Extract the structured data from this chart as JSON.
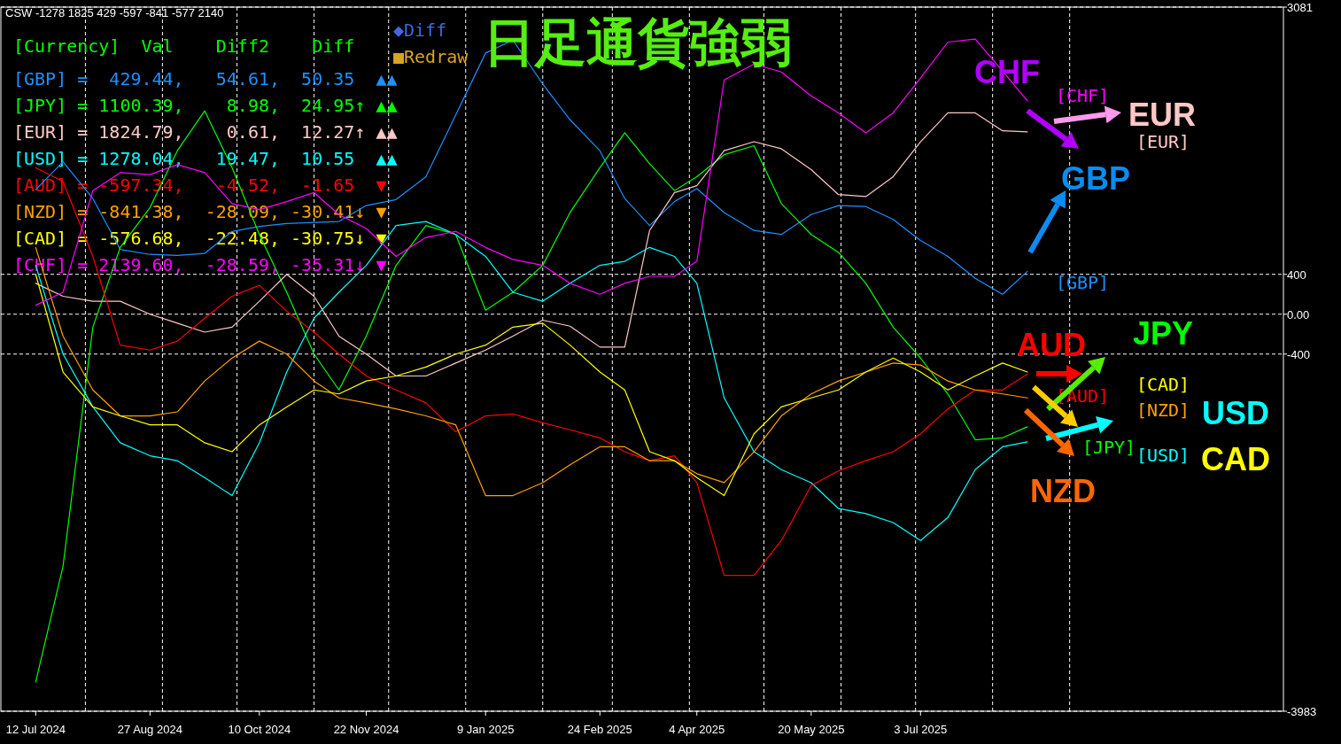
{
  "chart_data": {
    "type": "line",
    "title": "日足通貨強弱",
    "x": [
      "2024-07-12",
      "2024-07-23",
      "2024-08-04",
      "2024-08-15",
      "2024-08-27",
      "2024-09-07",
      "2024-09-18",
      "2024-09-29",
      "2024-10-10",
      "2024-10-21",
      "2024-11-01",
      "2024-11-11",
      "2024-11-22",
      "2024-12-04",
      "2024-12-16",
      "2024-12-28",
      "2025-01-09",
      "2025-01-20",
      "2025-02-01",
      "2025-02-12",
      "2025-02-24",
      "2025-03-06",
      "2025-03-16",
      "2025-03-26",
      "2025-04-04",
      "2025-04-15",
      "2025-04-27",
      "2025-05-08",
      "2025-05-20",
      "2025-05-31",
      "2025-06-11",
      "2025-06-22",
      "2025-07-03",
      "2025-07-14",
      "2025-07-25",
      "2025-08-05",
      "2025-08-15"
    ],
    "xlim": [
      "2024-06-28",
      "2025-11-26"
    ],
    "xticks": [
      {
        "value": "2024-07-12",
        "label": "12 Jul 2024"
      },
      {
        "value": "2024-08-27",
        "label": "27 Aug 2024"
      },
      {
        "value": "2024-10-10",
        "label": "10 Oct 2024"
      },
      {
        "value": "2024-11-22",
        "label": "22 Nov 2024"
      },
      {
        "value": "2025-01-09",
        "label": "9 Jan 2025"
      },
      {
        "value": "2025-02-24",
        "label": "24 Feb 2025"
      },
      {
        "value": "2025-04-04",
        "label": "4 Apr 2025"
      },
      {
        "value": "2025-05-20",
        "label": "20 May 2025"
      },
      {
        "value": "2025-07-03",
        "label": "3 Jul 2025"
      }
    ],
    "ylim": [
      -3983,
      3081
    ],
    "yticks": [
      3081,
      400,
      {
        "value": 0,
        "label": "0.00"
      },
      -400,
      -3983
    ],
    "grid": "y",
    "series": [
      {
        "name": "GBP",
        "color": "#1e90ff",
        "values": [
          1250,
          1530,
          1160,
          650,
          600,
          590,
          610,
          830,
          880,
          910,
          920,
          930,
          1090,
          1150,
          1380,
          2000,
          2620,
          2750,
          2310,
          1950,
          1640,
          1160,
          890,
          1130,
          1260,
          1020,
          840,
          800,
          1000,
          1090,
          1080,
          950,
          740,
          580,
          360,
          200,
          430
        ]
      },
      {
        "name": "JPY",
        "color": "#00ff00",
        "values": [
          -3690,
          -2530,
          -130,
          670,
          1070,
          1640,
          2040,
          1470,
          800,
          220,
          -400,
          -760,
          -220,
          490,
          890,
          800,
          40,
          220,
          490,
          1020,
          1470,
          1820,
          1510,
          1240,
          1380,
          1600,
          1690,
          1110,
          800,
          620,
          310,
          -130,
          -440,
          -800,
          -1260,
          -1240,
          -1130
        ]
      },
      {
        "name": "EUR",
        "color": "#ffc8c8",
        "values": [
          310,
          180,
          130,
          130,
          0,
          -90,
          -180,
          -130,
          130,
          400,
          180,
          -220,
          -400,
          -620,
          -620,
          -490,
          -360,
          -220,
          -60,
          -120,
          -330,
          -330,
          840,
          1220,
          1290,
          1640,
          1730,
          1660,
          1450,
          1200,
          1180,
          1380,
          1730,
          2020,
          2020,
          1840,
          1830
        ]
      },
      {
        "name": "USD",
        "color": "#00ffff",
        "values": [
          490,
          -400,
          -930,
          -1290,
          -1420,
          -1470,
          -1640,
          -1820,
          -1290,
          -580,
          -40,
          220,
          490,
          890,
          930,
          800,
          580,
          220,
          130,
          310,
          490,
          530,
          670,
          580,
          310,
          -840,
          -1380,
          -1560,
          -1690,
          -1950,
          -2000,
          -2090,
          -2270,
          -2040,
          -1560,
          -1330,
          -1280
        ]
      },
      {
        "name": "AUD",
        "color": "#ff0000",
        "values": [
          1470,
          1330,
          580,
          -310,
          -360,
          -270,
          -40,
          180,
          290,
          30,
          -180,
          -400,
          -620,
          -760,
          -890,
          -1180,
          -1020,
          -1000,
          -1090,
          -1160,
          -1240,
          -1380,
          -1470,
          -1420,
          -1690,
          -2620,
          -2620,
          -2270,
          -1720,
          -1570,
          -1470,
          -1380,
          -1200,
          -950,
          -760,
          -760,
          -600
        ]
      },
      {
        "name": "NZD",
        "color": "#ffa000",
        "values": [
          670,
          -220,
          -760,
          -1020,
          -1020,
          -980,
          -670,
          -440,
          -270,
          -400,
          -670,
          -840,
          -890,
          -950,
          -1020,
          -1110,
          -1820,
          -1820,
          -1690,
          -1510,
          -1330,
          -1330,
          -1470,
          -1470,
          -1600,
          -1690,
          -1380,
          -1020,
          -800,
          -670,
          -580,
          -490,
          -510,
          -670,
          -760,
          -800,
          -840
        ]
      },
      {
        "name": "CAD",
        "color": "#ffff00",
        "values": [
          400,
          -580,
          -930,
          -1020,
          -1110,
          -1110,
          -1290,
          -1380,
          -1110,
          -930,
          -760,
          -800,
          -670,
          -620,
          -530,
          -400,
          -310,
          -130,
          -90,
          -310,
          -580,
          -760,
          -1380,
          -1470,
          -1640,
          -1820,
          -1200,
          -930,
          -840,
          -760,
          -580,
          -440,
          -580,
          -760,
          -620,
          -490,
          -580
        ]
      },
      {
        "name": "CHF",
        "color": "#ff00ff",
        "values": [
          90,
          220,
          1240,
          1420,
          1400,
          1500,
          1420,
          1110,
          1050,
          1130,
          1220,
          1000,
          860,
          580,
          770,
          830,
          670,
          550,
          490,
          310,
          200,
          310,
          380,
          380,
          530,
          2350,
          2510,
          2430,
          2190,
          2020,
          1820,
          2020,
          2370,
          2730,
          2760,
          2440,
          2140
        ]
      }
    ],
    "ref_lines": [
      {
        "axis": "x",
        "value": "2024-08-01",
        "color": "#ffffff",
        "line_style": "dashed"
      },
      {
        "axis": "x",
        "value": "2024-09-01",
        "color": "#ffffff",
        "line_style": "dashed"
      },
      {
        "axis": "x",
        "value": "2024-10-01",
        "color": "#ffffff",
        "line_style": "dashed"
      },
      {
        "axis": "x",
        "value": "2024-11-01",
        "color": "#ffffff",
        "line_style": "dashed"
      },
      {
        "axis": "x",
        "value": "2024-12-01",
        "color": "#ffffff",
        "line_style": "dashed"
      },
      {
        "axis": "x",
        "value": "2025-01-01",
        "color": "#ffffff",
        "line_style": "dashed"
      },
      {
        "axis": "x",
        "value": "2025-02-01",
        "color": "#ffffff",
        "line_style": "dashed"
      },
      {
        "axis": "x",
        "value": "2025-03-01",
        "color": "#ffffff",
        "line_style": "dashed"
      },
      {
        "axis": "x",
        "value": "2025-04-01",
        "color": "#ffffff",
        "line_style": "dashed"
      },
      {
        "axis": "x",
        "value": "2025-05-01",
        "color": "#ffffff",
        "line_style": "dashed"
      },
      {
        "axis": "x",
        "value": "2025-06-01",
        "color": "#ffffff",
        "line_style": "dashed"
      },
      {
        "axis": "x",
        "value": "2025-07-01",
        "color": "#ffffff",
        "line_style": "dashed"
      },
      {
        "axis": "x",
        "value": "2025-08-01",
        "color": "#ffffff",
        "line_style": "dashed"
      },
      {
        "axis": "x",
        "value": "2025-09-01",
        "color": "#ffffff",
        "line_style": "dashed"
      }
    ],
    "annotations": [
      "CSW -1278 1825 429 -597 -841 -577 2140",
      "[Currency]  Val    Diff2    Diff",
      "[GBP] =  429.44,   54.61,  50.35  ▲▲",
      "[JPY] = 1100.39,    8.98,  24.95↑ ▲▲",
      "[EUR] = 1824.79,    0.61,  12.27↑ ▲▲",
      "[USD] = 1278.04,   19.47,  10.55  ▲▲",
      "[AUD] = -597.34,   -4.52,  -1.65  ▼",
      "[NZD] = -841.38,  -28.09, -30.41↓ ▼",
      "[CAD] = -576.68,  -22.48, -30.75↓ ▼",
      "[CHF] = 2139.60,  -28.59, -35.31↓ ▼",
      "◆Diff",
      "■Redraw",
      "[CHF]",
      "[EUR]",
      "[GBP]",
      "[AUD]",
      "[CAD]",
      "[NZD]",
      "[JPY]",
      "[USD]"
    ]
  }
}
